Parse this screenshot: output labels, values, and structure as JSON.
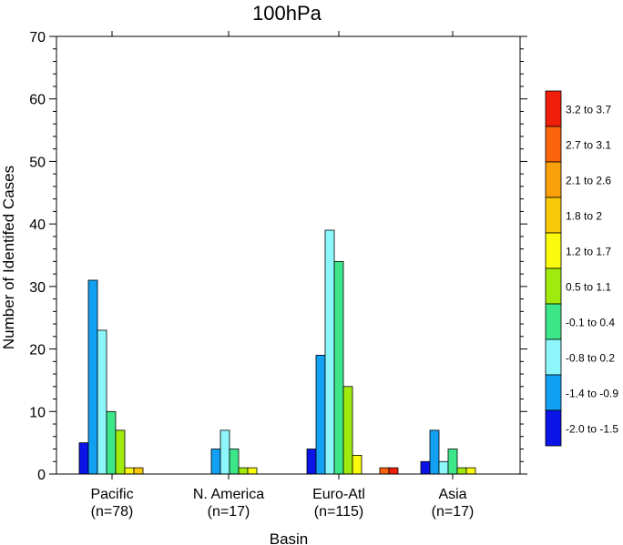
{
  "chart_data": {
    "type": "bar",
    "title": "100hPa",
    "xlabel": "Basin",
    "ylabel": "Number of Identifed Cases",
    "ylim": [
      0,
      70
    ],
    "yticks": [
      0,
      10,
      20,
      30,
      40,
      50,
      60,
      70
    ],
    "grid": false,
    "legend_position": "right",
    "categories": [
      {
        "name": "Pacific",
        "count": "(n=78)"
      },
      {
        "name": "N. America",
        "count": "(n=17)"
      },
      {
        "name": "Euro-Atl",
        "count": "(n=115)"
      },
      {
        "name": "Asia",
        "count": "(n=17)"
      }
    ],
    "series": [
      {
        "name": "-2.0 to -1.5",
        "color": "#0A14E6",
        "values": [
          5,
          0,
          4,
          2
        ]
      },
      {
        "name": "-1.4 to -0.9",
        "color": "#12A0F2",
        "values": [
          31,
          4,
          19,
          7
        ]
      },
      {
        "name": "-0.8 to 0.2",
        "color": "#8CF6FA",
        "values": [
          23,
          7,
          39,
          2
        ]
      },
      {
        "name": "-0.1 to 0.4",
        "color": "#3EE68A",
        "values": [
          10,
          4,
          34,
          4
        ]
      },
      {
        "name": "0.5 to 1.1",
        "color": "#A0EA0E",
        "values": [
          7,
          1,
          14,
          1
        ]
      },
      {
        "name": "1.2 to 1.7",
        "color": "#FAFA0E",
        "values": [
          1,
          1,
          3,
          1
        ]
      },
      {
        "name": "1.8 to 2",
        "color": "#FAC80A",
        "values": [
          1,
          0,
          0,
          0
        ]
      },
      {
        "name": "2.1 to 2.6",
        "color": "#FAA00A",
        "values": [
          0,
          0,
          0,
          0
        ]
      },
      {
        "name": "2.7 to 3.1",
        "color": "#FA640A",
        "values": [
          0,
          0,
          1,
          0
        ]
      },
      {
        "name": "3.2 to 3.7",
        "color": "#F01E0A",
        "values": [
          0,
          0,
          1,
          0
        ]
      }
    ]
  }
}
